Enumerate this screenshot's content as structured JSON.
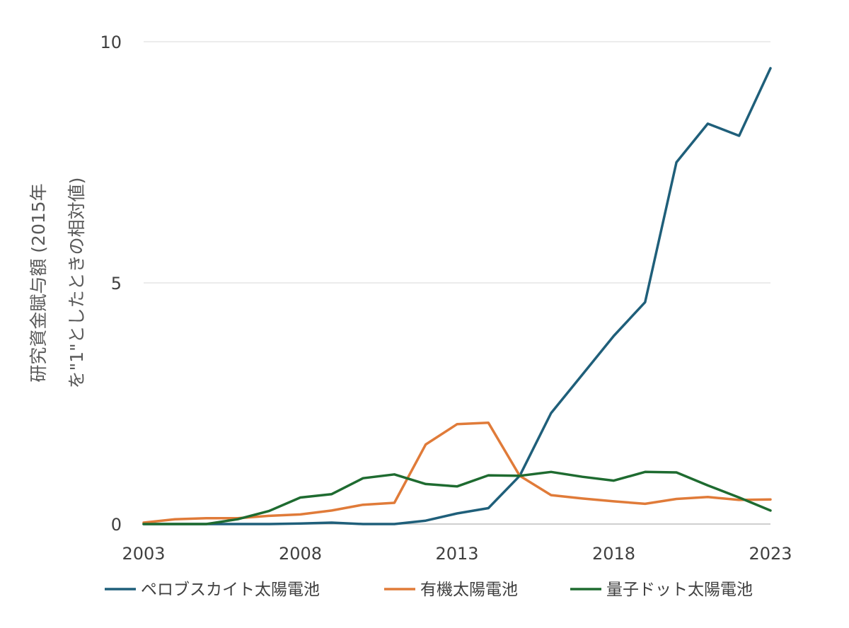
{
  "chart_data": {
    "type": "line",
    "title": "",
    "ylabel_lines": [
      "研究資金賦与額 (2015年",
      "を\"1\"としたときの相対値)"
    ],
    "xlabel": "",
    "ylim": [
      0,
      10
    ],
    "yticks": [
      0,
      5,
      10
    ],
    "xlim": [
      2003,
      2023
    ],
    "xticks": [
      2003,
      2008,
      2013,
      2018,
      2023
    ],
    "grid": true,
    "legend_position": "bottom",
    "x": [
      2003,
      2004,
      2005,
      2006,
      2007,
      2008,
      2009,
      2010,
      2011,
      2012,
      2013,
      2014,
      2015,
      2016,
      2017,
      2018,
      2019,
      2020,
      2021,
      2022,
      2023
    ],
    "series": [
      {
        "name": "ペロブスカイト太陽電池",
        "color": "#1f5f7a",
        "values": [
          0,
          0,
          0,
          0,
          0,
          0.01,
          0.03,
          0,
          0,
          0.07,
          0.22,
          0.33,
          1.0,
          2.3,
          3.1,
          3.9,
          4.6,
          7.5,
          8.3,
          8.05,
          9.45
        ]
      },
      {
        "name": "有機太陽電池",
        "color": "#e07b39",
        "values": [
          0.03,
          0.1,
          0.12,
          0.12,
          0.17,
          0.2,
          0.28,
          0.4,
          0.44,
          1.65,
          2.07,
          2.1,
          1.0,
          0.6,
          0.53,
          0.47,
          0.42,
          0.52,
          0.56,
          0.5,
          0.51
        ]
      },
      {
        "name": "量子ドット太陽電池",
        "color": "#1e6b30",
        "values": [
          0,
          0,
          0,
          0.1,
          0.27,
          0.55,
          0.62,
          0.95,
          1.03,
          0.83,
          0.78,
          1.01,
          1.0,
          1.08,
          0.98,
          0.9,
          1.08,
          1.07,
          0.8,
          0.55,
          0.28
        ]
      }
    ]
  }
}
